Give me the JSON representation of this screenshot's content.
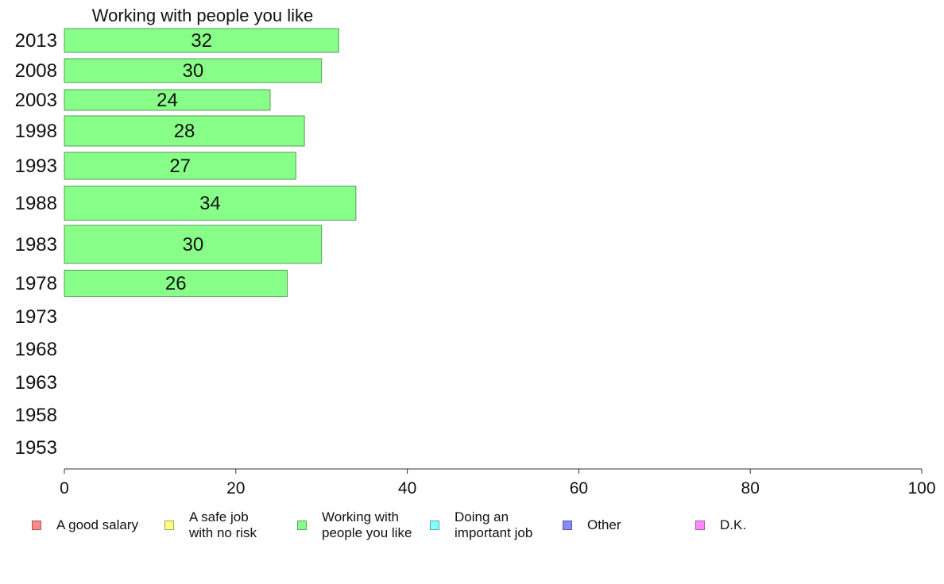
{
  "chart_data": {
    "type": "bar",
    "orientation": "horizontal",
    "title": "Working with people you like",
    "categories": [
      "2013",
      "2008",
      "2003",
      "1998",
      "1993",
      "1988",
      "1983",
      "1978",
      "1973",
      "1968",
      "1963",
      "1958",
      "1953"
    ],
    "values": [
      32,
      30,
      24,
      28,
      27,
      34,
      30,
      26,
      null,
      null,
      null,
      null,
      null
    ],
    "xlim": [
      0,
      100
    ],
    "x_ticks": [
      "0",
      "20",
      "40",
      "60",
      "80",
      "100"
    ],
    "bar_color": "#88ff88",
    "grid": false,
    "legend_position": "bottom",
    "legend": [
      {
        "label": "A good salary",
        "color": "#ff8888"
      },
      {
        "label": "A safe job\nwith no risk",
        "color": "#ffff88"
      },
      {
        "label": "Working with\npeople you like",
        "color": "#88ff88"
      },
      {
        "label": "Doing an\nimportant job",
        "color": "#88ffff"
      },
      {
        "label": "Other",
        "color": "#8888ff"
      },
      {
        "label": "D.K.",
        "color": "#ff88ff"
      }
    ]
  }
}
